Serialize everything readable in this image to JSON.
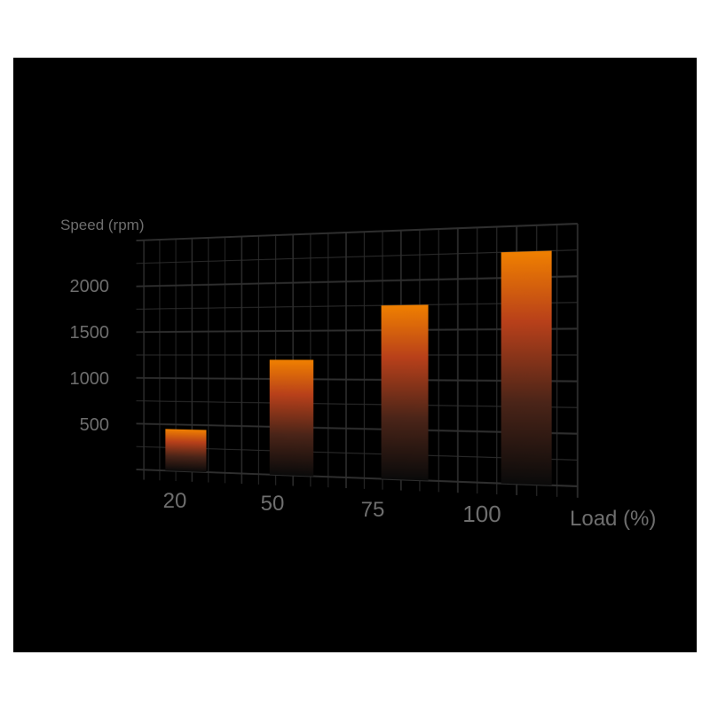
{
  "chart_data": {
    "type": "bar",
    "categories": [
      "20",
      "50",
      "75",
      "100"
    ],
    "values": [
      450,
      1200,
      1750,
      2250
    ],
    "xlabel": "Load (%)",
    "ylabel": "Speed (rpm)",
    "yticks": [
      "500",
      "1000",
      "1500",
      "2000"
    ],
    "ylim": [
      0,
      2500
    ],
    "grid": true,
    "colors": {
      "background": "#000000",
      "bar_top": "#f08000",
      "bar_mid": "#b8401a",
      "bar_bottom": "#0a0a0a",
      "grid": "#2e2e2e",
      "text": "#6e6e6e"
    }
  }
}
